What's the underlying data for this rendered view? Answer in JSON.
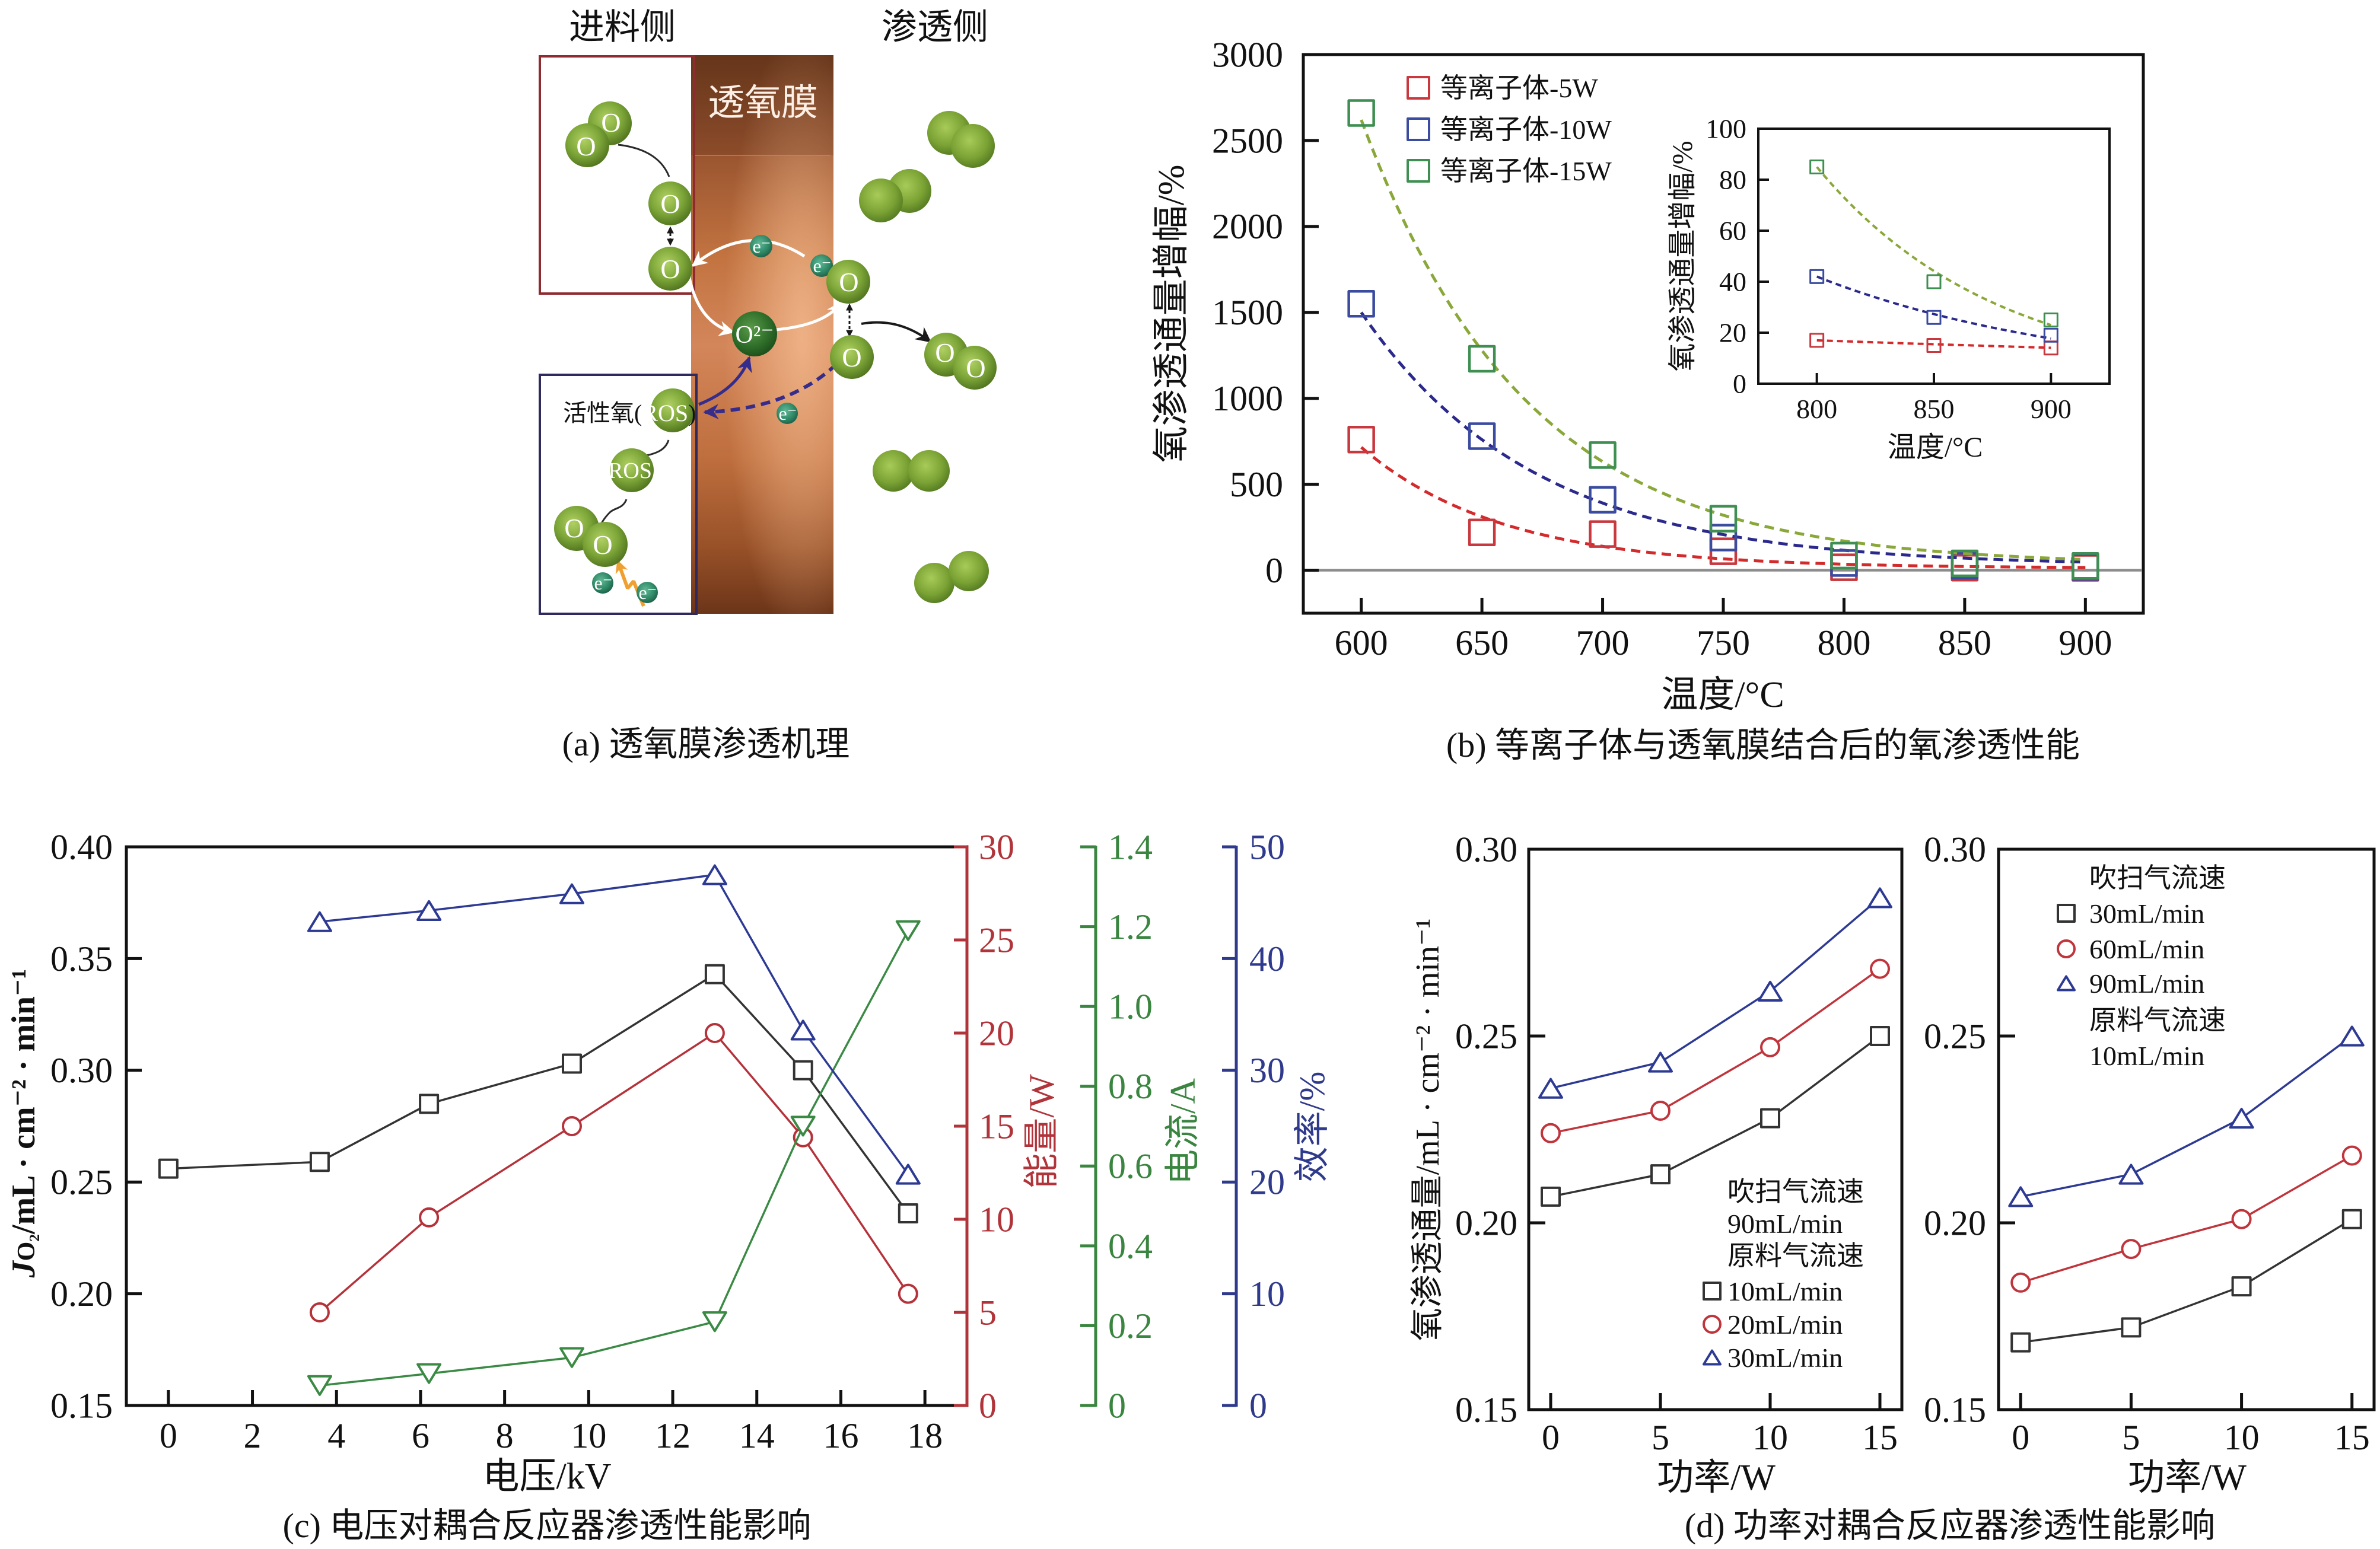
{
  "figure": {
    "panel_a": {
      "caption": "(a) 透氧膜渗透机理",
      "feed_side_label": "进料侧",
      "permeate_side_label": "渗透侧",
      "membrane_label": "透氧膜",
      "oxygen_atom": "O",
      "oxide_ion": "O²⁻",
      "electron": "e⁻",
      "ros_label_prefix": "活性氧(",
      "ros_label_core": "ROS",
      "ros_label_suffix": ")",
      "ros_atom": "ROS"
    }
  },
  "chart_data": [
    {
      "id": "b-main",
      "type": "scatter",
      "caption": "(b) 等离子体与透氧膜结合后的氧渗透性能",
      "title": "",
      "xlabel": "温度/°C",
      "ylabel": "氧渗透通量增幅/%",
      "xlim": [
        576,
        924
      ],
      "ylim": [
        -250,
        3000
      ],
      "xticks": [
        600,
        650,
        700,
        750,
        800,
        850,
        900
      ],
      "xtick_labels": [
        "600",
        "650",
        "700",
        "750",
        "800",
        "850",
        "900"
      ],
      "yticks": [
        0,
        500,
        1000,
        1500,
        2000,
        2500,
        3000
      ],
      "ytick_labels": [
        "0",
        "500",
        "1000",
        "1500",
        "2000",
        "2500",
        "3000"
      ],
      "grid": false,
      "reference_line": {
        "y": 0,
        "color": "#8c8c8c"
      },
      "legend": {
        "position": "top-left"
      },
      "series": [
        {
          "name": "等离子体-5W",
          "marker": "square",
          "color": "#c8383e",
          "fit_color": "#d32a2c",
          "x": [
            600,
            650,
            700,
            750,
            800,
            850,
            900
          ],
          "y": [
            760,
            220,
            210,
            110,
            17,
            15,
            14
          ],
          "fit": {
            "model": "exponential",
            "x0": 600,
            "step": 50,
            "A": 703,
            "r": 0.425,
            "C": 12
          }
        },
        {
          "name": "等离子体-10W",
          "marker": "square",
          "color": "#3b4ca0",
          "fit_color": "#2b2a8c",
          "x": [
            600,
            650,
            700,
            750,
            800,
            850,
            900
          ],
          "y": [
            1550,
            780,
            410,
            190,
            42,
            26,
            19
          ],
          "fit": {
            "model": "exponential",
            "x0": 600,
            "step": 50,
            "A": 1475,
            "r": 0.498,
            "C": 25
          }
        },
        {
          "name": "等离子体-15W",
          "marker": "square",
          "color": "#3f8f52",
          "fit_color": "#8aa83a",
          "x": [
            600,
            650,
            700,
            750,
            800,
            850,
            900
          ],
          "y": [
            2660,
            1230,
            670,
            300,
            85,
            40,
            25
          ],
          "fit": {
            "model": "exponential",
            "x0": 600,
            "step": 50,
            "A": 2590,
            "r": 0.482,
            "C": 30
          }
        }
      ]
    },
    {
      "id": "b-inset",
      "type": "scatter",
      "xlabel": "温度/°C",
      "ylabel": "氧渗透通量增幅/%",
      "xlim": [
        775,
        925
      ],
      "ylim": [
        0,
        100
      ],
      "xticks": [
        800,
        850,
        900
      ],
      "xtick_labels": [
        "800",
        "850",
        "900"
      ],
      "yticks": [
        0,
        20,
        40,
        60,
        80,
        100
      ],
      "ytick_labels": [
        "0",
        "20",
        "40",
        "60",
        "80",
        "100"
      ],
      "grid": false,
      "series": [
        {
          "name": "等离子体-5W",
          "marker": "square",
          "color": "#c8383e",
          "fit_color": "#d32a2c",
          "x": [
            800,
            850,
            900
          ],
          "y": [
            17,
            15,
            14
          ],
          "fit": {
            "model": "exponential",
            "x0": 800,
            "step": 50,
            "A": 17,
            "r": 0.91,
            "C": 0
          }
        },
        {
          "name": "等离子体-10W",
          "marker": "square",
          "color": "#3b4ca0",
          "fit_color": "#2b2a8c",
          "x": [
            800,
            850,
            900
          ],
          "y": [
            42,
            26,
            19
          ],
          "fit": {
            "model": "exponential",
            "x0": 800,
            "step": 50,
            "A": 42,
            "r": 0.65,
            "C": 0
          }
        },
        {
          "name": "等离子体-15W",
          "marker": "square",
          "color": "#3f8f52",
          "fit_color": "#8aa83a",
          "x": [
            800,
            850,
            900
          ],
          "y": [
            85,
            40,
            25
          ],
          "fit": {
            "model": "exponential",
            "x0": 800,
            "step": 50,
            "A": 85,
            "r": 0.52,
            "C": 0
          }
        }
      ]
    },
    {
      "id": "c",
      "type": "line",
      "caption": "(c) 电压对耦合反应器渗透性能影响",
      "xlabel": "电压/kV",
      "ylabel_parts": [
        "J",
        "O₂",
        "/mL · cm⁻² · min⁻¹"
      ],
      "xlim": [
        -1,
        19
      ],
      "xticks": [
        0,
        2,
        4,
        6,
        8,
        10,
        12,
        14,
        16,
        18
      ],
      "xtick_labels": [
        "0",
        "2",
        "4",
        "6",
        "8",
        "10",
        "12",
        "14",
        "16",
        "18"
      ],
      "ylim": [
        0.15,
        0.4
      ],
      "yticks": [
        0.15,
        0.2,
        0.25,
        0.3,
        0.35,
        0.4
      ],
      "ytick_labels": [
        "0.15",
        "0.20",
        "0.25",
        "0.30",
        "0.35",
        "0.40"
      ],
      "grid": false,
      "secondary_axes": [
        {
          "id": "energy",
          "label": "能量/W",
          "color": "#b0343a",
          "ylim": [
            0,
            30
          ],
          "ticks": [
            0,
            5,
            10,
            15,
            20,
            25,
            30
          ],
          "tick_labels": [
            "0",
            "5",
            "10",
            "15",
            "20",
            "25",
            "30"
          ]
        },
        {
          "id": "current",
          "label": "电流/A",
          "color": "#3a8540",
          "ylim": [
            0,
            1.4
          ],
          "ticks": [
            0,
            0.2,
            0.4,
            0.6,
            0.8,
            1.0,
            1.2,
            1.4
          ],
          "tick_labels": [
            "0",
            "0.2",
            "0.4",
            "0.6",
            "0.8",
            "1.0",
            "1.2",
            "1.4"
          ]
        },
        {
          "id": "efficiency",
          "label": "效率/%",
          "color": "#2f3a8c",
          "ylim": [
            0,
            50
          ],
          "ticks": [
            0,
            10,
            20,
            30,
            40,
            50
          ],
          "tick_labels": [
            "0",
            "10",
            "20",
            "30",
            "40",
            "50"
          ]
        }
      ],
      "series": [
        {
          "name": "Jo2",
          "axis": "primary",
          "marker": "square",
          "color": "#333333",
          "x": [
            0,
            3.6,
            6.2,
            9.6,
            13.0,
            15.1,
            17.6
          ],
          "y": [
            0.256,
            0.259,
            0.285,
            0.303,
            0.343,
            0.3,
            0.236
          ]
        },
        {
          "name": "能量",
          "axis": "energy",
          "marker": "circle",
          "color": "#b5323a",
          "x": [
            3.6,
            6.2,
            9.6,
            13.0,
            15.1,
            17.6
          ],
          "y": [
            5.0,
            10.1,
            15.0,
            20.0,
            14.4,
            6.0
          ]
        },
        {
          "name": "电流",
          "axis": "current",
          "marker": "triangle-down",
          "color": "#3a8a44",
          "x": [
            3.6,
            6.2,
            9.6,
            13.0,
            15.1,
            17.6
          ],
          "y": [
            0.05,
            0.08,
            0.12,
            0.21,
            0.7,
            1.19
          ]
        },
        {
          "name": "效率",
          "axis": "efficiency",
          "marker": "triangle-up",
          "color": "#2d3a94",
          "x": [
            3.6,
            6.2,
            9.6,
            13.0,
            15.1,
            17.6
          ],
          "y": [
            43.3,
            44.3,
            45.8,
            47.5,
            33.6,
            20.7
          ]
        }
      ]
    },
    {
      "id": "d-left",
      "type": "line",
      "caption": "(d) 功率对耦合反应器渗透性能影响",
      "xlabel": "功率/W",
      "ylabel": "氧渗透通量/mL · cm⁻² · min⁻¹",
      "xlim": [
        -1,
        16
      ],
      "xticks": [
        0,
        5,
        10,
        15
      ],
      "xtick_labels": [
        "0",
        "5",
        "10",
        "15"
      ],
      "ylim": [
        0.15,
        0.3
      ],
      "yticks": [
        0.15,
        0.2,
        0.25,
        0.3
      ],
      "ytick_labels": [
        "0.15",
        "0.20",
        "0.25",
        "0.30"
      ],
      "grid": false,
      "legend": {
        "position": "bottom-right",
        "header": [
          "吹扫气流速",
          "90mL/min",
          "原料气流速"
        ],
        "footer": []
      },
      "series": [
        {
          "name": "10mL/min",
          "marker": "square",
          "color": "#333333",
          "x": [
            0,
            5,
            10,
            15
          ],
          "y": [
            0.207,
            0.213,
            0.228,
            0.25
          ]
        },
        {
          "name": "20mL/min",
          "marker": "circle",
          "color": "#c0343c",
          "x": [
            0,
            5,
            10,
            15
          ],
          "y": [
            0.224,
            0.23,
            0.247,
            0.268
          ]
        },
        {
          "name": "30mL/min",
          "marker": "triangle-up",
          "color": "#2d3a94",
          "x": [
            0,
            5,
            10,
            15
          ],
          "y": [
            0.236,
            0.243,
            0.262,
            0.287
          ]
        }
      ]
    },
    {
      "id": "d-right",
      "type": "line",
      "xlabel": "功率/W",
      "xlim": [
        -1,
        16
      ],
      "xticks": [
        0,
        5,
        10,
        15
      ],
      "xtick_labels": [
        "0",
        "5",
        "10",
        "15"
      ],
      "ylim": [
        0.15,
        0.3
      ],
      "yticks": [
        0.15,
        0.2,
        0.25,
        0.3
      ],
      "ytick_labels": [
        "0.15",
        "0.20",
        "0.25",
        "0.30"
      ],
      "grid": false,
      "legend": {
        "position": "top-left",
        "header": [
          "吹扫气流速"
        ],
        "footer": [
          "原料气流速",
          "10mL/min"
        ]
      },
      "series": [
        {
          "name": "30mL/min",
          "marker": "square",
          "color": "#333333",
          "x": [
            0,
            5,
            10,
            15
          ],
          "y": [
            0.168,
            0.172,
            0.183,
            0.201
          ]
        },
        {
          "name": "60mL/min",
          "marker": "circle",
          "color": "#c0343c",
          "x": [
            0,
            5,
            10,
            15
          ],
          "y": [
            0.184,
            0.193,
            0.201,
            0.218
          ]
        },
        {
          "name": "90mL/min",
          "marker": "triangle-up",
          "color": "#2d3a94",
          "x": [
            0,
            5,
            10,
            15
          ],
          "y": [
            0.207,
            0.213,
            0.228,
            0.25
          ]
        }
      ]
    }
  ]
}
